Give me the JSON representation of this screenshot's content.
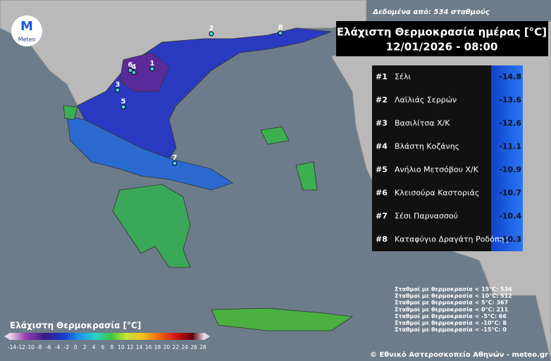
{
  "header": {
    "source": "Δεδομένα από: 534 σταθμούς",
    "title": "Ελάχιστη Θερμοκρασία ημέρας [°C]",
    "datetime": "12/01/2026 - 08:00"
  },
  "logo": {
    "label": "Meteo"
  },
  "ranking": [
    {
      "rank": "#1",
      "name": "Σέλι",
      "value": -14.8
    },
    {
      "rank": "#2",
      "name": "Λαϊλιάς Σερρών",
      "value": -13.6
    },
    {
      "rank": "#3",
      "name": "Βασιλίτσα Χ/Κ",
      "value": -12.6
    },
    {
      "rank": "#4",
      "name": "Βλάστη Κοζάνης",
      "value": -11.1
    },
    {
      "rank": "#5",
      "name": "Ανήλιο Μετσόβου Χ/Κ",
      "value": -10.9
    },
    {
      "rank": "#6",
      "name": "Κλεισούρα Καστοριάς",
      "value": -10.7
    },
    {
      "rank": "#7",
      "name": "Σέσι Παρνασσού",
      "value": -10.4
    },
    {
      "rank": "#8",
      "name": "Καταφύγιο Δραγάτη Ροδόπης",
      "value": -10.3
    }
  ],
  "markers": [
    {
      "label": "1"
    },
    {
      "label": "2"
    },
    {
      "label": "3"
    },
    {
      "label": "4"
    },
    {
      "label": "5"
    },
    {
      "label": "6"
    },
    {
      "label": "7"
    },
    {
      "label": "8"
    }
  ],
  "stats": [
    "Σταθμοί με θερμοκρασία < 15°C: 534",
    "Σταθμοί με θερμοκρασία < 10°C: 512",
    "Σταθμοί με θερμοκρασία < 5°C: 367",
    "Σταθμοί με θερμοκρασία < 0°C: 211",
    "Σταθμοί με θερμοκρασία < -5°C: 66",
    "Σταθμοί με θερμοκρασία < -10°C: 8",
    "Σταθμοί με θερμοκρασία < -15°C: 0"
  ],
  "legend": {
    "title": "Ελάχιστη Θερμοκρασία [°C]",
    "ticks": [
      -14,
      -12,
      -10,
      -8,
      -6,
      -4,
      -2,
      0,
      2,
      4,
      6,
      8,
      10,
      12,
      14,
      16,
      18,
      20,
      22,
      24,
      26,
      28
    ]
  },
  "footer": {
    "copyright": "© Εθνικό Αστεροσκοπείο Αθηνών - meteo.gr"
  }
}
